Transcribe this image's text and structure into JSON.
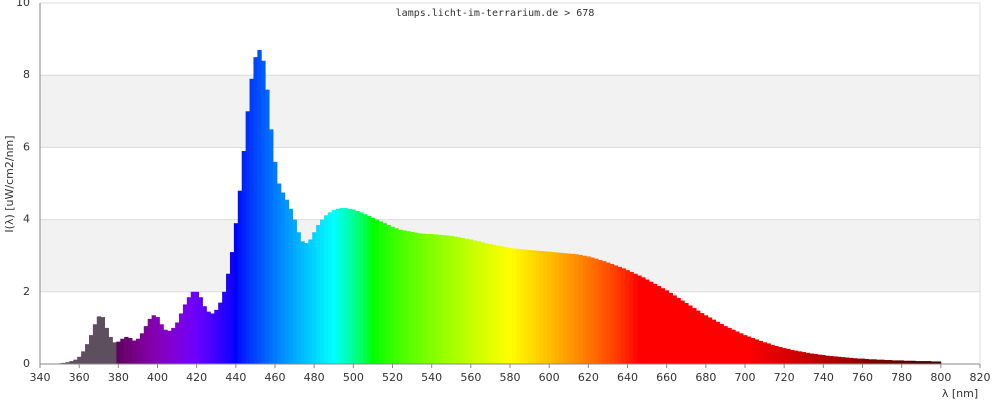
{
  "chart_data": {
    "type": "spectrum",
    "title": "lamps.licht-im-terrarium.de > 678",
    "x_label": "λ [nm]",
    "y_label": "I(λ)  [uW/cm2/nm]",
    "xlim": [
      340,
      820
    ],
    "xticks": [
      340,
      360,
      380,
      400,
      420,
      440,
      460,
      480,
      500,
      520,
      540,
      560,
      580,
      600,
      620,
      640,
      660,
      680,
      700,
      720,
      740,
      760,
      780,
      800,
      820
    ],
    "ylim": [
      0,
      10
    ],
    "yticks": [
      0,
      2,
      4,
      6,
      8,
      10
    ],
    "grid": true,
    "band_color": "#f2f2f2",
    "uv_color": "#5e4f5f",
    "x": [
      350,
      352,
      354,
      356,
      358,
      360,
      362,
      364,
      366,
      368,
      370,
      372,
      374,
      376,
      378,
      380,
      382,
      384,
      386,
      388,
      390,
      392,
      394,
      396,
      398,
      400,
      402,
      404,
      406,
      408,
      410,
      412,
      414,
      416,
      418,
      420,
      422,
      424,
      426,
      428,
      430,
      432,
      434,
      436,
      438,
      440,
      442,
      444,
      446,
      448,
      450,
      452,
      454,
      456,
      458,
      460,
      462,
      464,
      466,
      468,
      470,
      472,
      474,
      476,
      478,
      480,
      482,
      484,
      486,
      488,
      490,
      492,
      494,
      496,
      498,
      500,
      502,
      504,
      506,
      508,
      510,
      512,
      514,
      516,
      518,
      520,
      522,
      524,
      526,
      528,
      530,
      532,
      534,
      536,
      538,
      540,
      542,
      544,
      546,
      548,
      550,
      552,
      554,
      556,
      558,
      560,
      562,
      564,
      566,
      568,
      570,
      572,
      574,
      576,
      578,
      580,
      582,
      584,
      586,
      588,
      590,
      592,
      594,
      596,
      598,
      600,
      602,
      604,
      606,
      608,
      610,
      612,
      614,
      616,
      618,
      620,
      622,
      624,
      626,
      628,
      630,
      632,
      634,
      636,
      638,
      640,
      642,
      644,
      646,
      648,
      650,
      652,
      654,
      656,
      658,
      660,
      662,
      664,
      666,
      668,
      670,
      672,
      674,
      676,
      678,
      680,
      682,
      684,
      686,
      688,
      690,
      692,
      694,
      696,
      698,
      700,
      702,
      704,
      706,
      708,
      710,
      712,
      714,
      716,
      718,
      720,
      722,
      724,
      726,
      728,
      730,
      732,
      734,
      736,
      738,
      740,
      742,
      744,
      746,
      748,
      750,
      752,
      754,
      756,
      758,
      760,
      762,
      764,
      766,
      768,
      770,
      772,
      774,
      776,
      778,
      780,
      782,
      784,
      786,
      788,
      790,
      792,
      794,
      796,
      798,
      800
    ],
    "values": [
      0.02,
      0.03,
      0.05,
      0.08,
      0.12,
      0.2,
      0.35,
      0.55,
      0.8,
      1.1,
      1.32,
      1.3,
      1.0,
      0.75,
      0.6,
      0.62,
      0.7,
      0.75,
      0.72,
      0.65,
      0.7,
      0.85,
      1.05,
      1.25,
      1.35,
      1.3,
      1.1,
      0.95,
      0.92,
      1.0,
      1.15,
      1.4,
      1.65,
      1.85,
      2.0,
      2.0,
      1.85,
      1.6,
      1.45,
      1.4,
      1.5,
      1.7,
      2.0,
      2.5,
      3.1,
      3.9,
      4.8,
      5.9,
      7.0,
      7.9,
      8.5,
      8.7,
      8.4,
      7.6,
      6.5,
      5.6,
      5.0,
      4.75,
      4.55,
      4.3,
      4.0,
      3.65,
      3.4,
      3.35,
      3.45,
      3.65,
      3.85,
      4.0,
      4.12,
      4.2,
      4.27,
      4.3,
      4.32,
      4.32,
      4.3,
      4.28,
      4.24,
      4.2,
      4.15,
      4.1,
      4.05,
      4.0,
      3.95,
      3.9,
      3.85,
      3.8,
      3.76,
      3.72,
      3.7,
      3.68,
      3.66,
      3.64,
      3.62,
      3.61,
      3.6,
      3.6,
      3.59,
      3.58,
      3.57,
      3.56,
      3.55,
      3.53,
      3.51,
      3.49,
      3.47,
      3.45,
      3.42,
      3.4,
      3.37,
      3.34,
      3.32,
      3.3,
      3.28,
      3.26,
      3.24,
      3.22,
      3.2,
      3.19,
      3.18,
      3.17,
      3.16,
      3.15,
      3.14,
      3.13,
      3.12,
      3.11,
      3.1,
      3.09,
      3.08,
      3.07,
      3.06,
      3.05,
      3.04,
      3.02,
      3.0,
      2.98,
      2.95,
      2.92,
      2.88,
      2.85,
      2.81,
      2.77,
      2.73,
      2.69,
      2.65,
      2.6,
      2.55,
      2.5,
      2.45,
      2.4,
      2.34,
      2.28,
      2.22,
      2.16,
      2.1,
      2.04,
      1.97,
      1.9,
      1.83,
      1.76,
      1.69,
      1.62,
      1.55,
      1.48,
      1.41,
      1.35,
      1.29,
      1.23,
      1.17,
      1.11,
      1.05,
      1.0,
      0.95,
      0.9,
      0.85,
      0.8,
      0.76,
      0.72,
      0.68,
      0.64,
      0.6,
      0.57,
      0.53,
      0.5,
      0.47,
      0.44,
      0.42,
      0.39,
      0.37,
      0.35,
      0.33,
      0.31,
      0.29,
      0.28,
      0.26,
      0.25,
      0.23,
      0.22,
      0.21,
      0.2,
      0.19,
      0.18,
      0.17,
      0.16,
      0.15,
      0.15,
      0.14,
      0.13,
      0.13,
      0.12,
      0.12,
      0.11,
      0.11,
      0.1,
      0.1,
      0.1,
      0.09,
      0.09,
      0.09,
      0.08,
      0.08,
      0.08,
      0.08,
      0.07,
      0.07,
      0.07
    ]
  }
}
